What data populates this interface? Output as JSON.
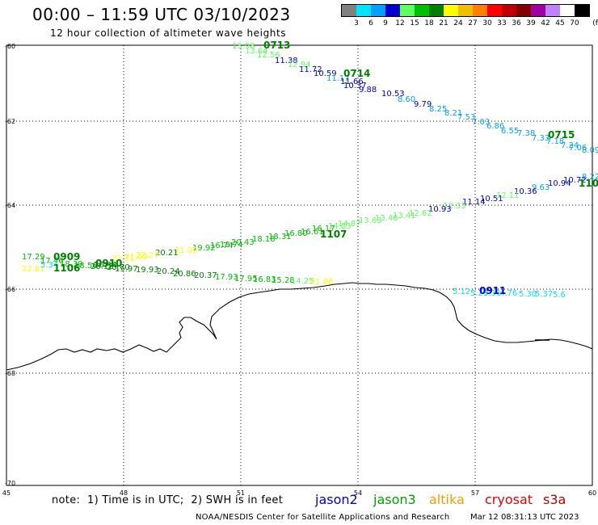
{
  "header": {
    "title": "00:00 – 11:59 UTC 03/10/2023",
    "subtitle": "12 hour collection of altimeter wave heights"
  },
  "legend": {
    "colors": [
      "#808080",
      "#00e5ff",
      "#00a0ff",
      "#0000d0",
      "#60ff60",
      "#00c000",
      "#008000",
      "#ffff00",
      "#f0c000",
      "#ff8000",
      "#ff0000",
      "#c00000",
      "#800000",
      "#a000a0",
      "#c080ff",
      "#ffffff",
      "#000000"
    ],
    "labels": [
      "3",
      "6",
      "9",
      "12",
      "15",
      "18",
      "21",
      "24",
      "27",
      "30",
      "33",
      "36",
      "39",
      "42",
      "45",
      "70"
    ],
    "unit": "(ft)"
  },
  "axes": {
    "lon_ticks": [
      "45",
      "48",
      "51",
      "54",
      "57",
      "60"
    ],
    "lat_ticks": [
      "-60",
      "-62",
      "-64",
      "-66",
      "-68",
      "-70"
    ]
  },
  "tracks": {
    "time_labels": [
      {
        "text": "0713",
        "color": "#008000"
      },
      {
        "text": "0714",
        "color": "#008000"
      },
      {
        "text": "0715",
        "color": "#008000"
      },
      {
        "text": "0909",
        "color": "#008000"
      },
      {
        "text": "0910",
        "color": "#008000"
      },
      {
        "text": "1106",
        "color": "#008000"
      },
      {
        "text": "1107",
        "color": "#008000"
      },
      {
        "text": "110",
        "color": "#008000"
      },
      {
        "text": "0911",
        "color": "#0000d0"
      }
    ],
    "swh_values": [
      {
        "text": "13.98",
        "color": "#60ff60"
      },
      {
        "text": "13.64",
        "color": "#60ff60"
      },
      {
        "text": "12.56",
        "color": "#60ff60"
      },
      {
        "text": "11.38",
        "color": "#0000d0"
      },
      {
        "text": "12.94",
        "color": "#60ff60"
      },
      {
        "text": "11.72",
        "color": "#0000d0"
      },
      {
        "text": "10.59",
        "color": "#0000d0"
      },
      {
        "text": "11.17",
        "color": "#00a0ff"
      },
      {
        "text": "11.66",
        "color": "#0000d0"
      },
      {
        "text": "10.37",
        "color": "#0000d0"
      },
      {
        "text": "9.88",
        "color": "#0000d0"
      },
      {
        "text": "10.53",
        "color": "#0000d0"
      },
      {
        "text": "8.60",
        "color": "#00a0ff"
      },
      {
        "text": "9.79",
        "color": "#0000d0"
      },
      {
        "text": "8.25",
        "color": "#00a0ff"
      },
      {
        "text": "8.21",
        "color": "#00a0ff"
      },
      {
        "text": "7.53",
        "color": "#00a0ff"
      },
      {
        "text": "7.03",
        "color": "#00a0ff"
      },
      {
        "text": "6.86",
        "color": "#00a0ff"
      },
      {
        "text": "6.55",
        "color": "#00a0ff"
      },
      {
        "text": "7.38",
        "color": "#00a0ff"
      },
      {
        "text": "7.33",
        "color": "#00a0ff"
      },
      {
        "text": "7.18",
        "color": "#00a0ff"
      },
      {
        "text": "7.24",
        "color": "#00a0ff"
      },
      {
        "text": "7.06",
        "color": "#00a0ff"
      },
      {
        "text": "8.09",
        "color": "#00a0ff"
      },
      {
        "text": "8.22",
        "color": "#00a0ff"
      },
      {
        "text": "10.72",
        "color": "#0000d0"
      },
      {
        "text": "10.94",
        "color": "#0000d0"
      },
      {
        "text": "9.63",
        "color": "#00a0ff"
      },
      {
        "text": "10.36",
        "color": "#0000d0"
      },
      {
        "text": "12.11",
        "color": "#60ff60"
      },
      {
        "text": "10.51",
        "color": "#0000d0"
      },
      {
        "text": "11.14",
        "color": "#0000d0"
      },
      {
        "text": "12.33",
        "color": "#60ff60"
      },
      {
        "text": "10.93",
        "color": "#0000d0"
      },
      {
        "text": "12.62",
        "color": "#60ff60"
      },
      {
        "text": "13.41",
        "color": "#60ff60"
      },
      {
        "text": "13.48",
        "color": "#60ff60"
      },
      {
        "text": "13.63",
        "color": "#60ff60"
      },
      {
        "text": "14.87",
        "color": "#60ff60"
      },
      {
        "text": "14.83",
        "color": "#60ff60"
      },
      {
        "text": "16.17",
        "color": "#00c000"
      },
      {
        "text": "16.61",
        "color": "#00c000"
      },
      {
        "text": "16.80",
        "color": "#00c000"
      },
      {
        "text": "18.31",
        "color": "#00c000"
      },
      {
        "text": "18.18",
        "color": "#00c000"
      },
      {
        "text": "20.43",
        "color": "#00c000"
      },
      {
        "text": "18.74",
        "color": "#00c000"
      },
      {
        "text": "16.74",
        "color": "#00c000"
      },
      {
        "text": "19.92",
        "color": "#00c000"
      },
      {
        "text": "21.02",
        "color": "#ffff00"
      },
      {
        "text": "20.21",
        "color": "#008000"
      },
      {
        "text": "22.27",
        "color": "#ffff00"
      },
      {
        "text": "21.69",
        "color": "#ffff00"
      },
      {
        "text": "22.71",
        "color": "#ffff00"
      },
      {
        "text": "17.29",
        "color": "#00c000"
      },
      {
        "text": "17.46",
        "color": "#00c000"
      },
      {
        "text": "18.39",
        "color": "#00c000"
      },
      {
        "text": "18.56",
        "color": "#00c000"
      },
      {
        "text": "20.12",
        "color": "#008000"
      },
      {
        "text": "20.70",
        "color": "#008000"
      },
      {
        "text": "20.44",
        "color": "#008000"
      },
      {
        "text": "19.97",
        "color": "#008000"
      },
      {
        "text": "19.93",
        "color": "#008000"
      },
      {
        "text": "20.24",
        "color": "#008000"
      },
      {
        "text": "20.86",
        "color": "#008000"
      },
      {
        "text": "20.37",
        "color": "#008000"
      },
      {
        "text": "17.93",
        "color": "#00c000"
      },
      {
        "text": "17.95",
        "color": "#00c000"
      },
      {
        "text": "16.83",
        "color": "#00c000"
      },
      {
        "text": "15.28",
        "color": "#00c000"
      },
      {
        "text": "14.25",
        "color": "#60ff60"
      },
      {
        "text": "21.86",
        "color": "#ffff00"
      },
      {
        "text": "22.81",
        "color": "#ffff00"
      },
      {
        "text": "5.34",
        "color": "#00e5ff"
      },
      {
        "text": "5.12",
        "color": "#00e5ff"
      },
      {
        "text": "5.29",
        "color": "#00e5ff"
      },
      {
        "text": "5.31",
        "color": "#00e5ff"
      },
      {
        "text": "4.76",
        "color": "#00e5ff"
      },
      {
        "text": "5.30",
        "color": "#00e5ff"
      },
      {
        "text": "5.37",
        "color": "#00e5ff"
      },
      {
        "text": "5.6",
        "color": "#00e5ff"
      }
    ]
  },
  "footer": {
    "note": "note:  1) Time is in UTC;  2) SWH is in feet",
    "satellites": [
      {
        "name": "jason2",
        "color": "#0000d0"
      },
      {
        "name": "jason3",
        "color": "#00a000"
      },
      {
        "name": "altika",
        "color": "#ff9900"
      },
      {
        "name": "cryosat",
        "color": "#e00000"
      },
      {
        "name": "s3a",
        "color": "#c00000"
      }
    ],
    "credit": "NOAA/NESDIS Center for Satellite Applications and Research",
    "timestamp": "Mar 12 08:31:13 UTC 2023"
  }
}
